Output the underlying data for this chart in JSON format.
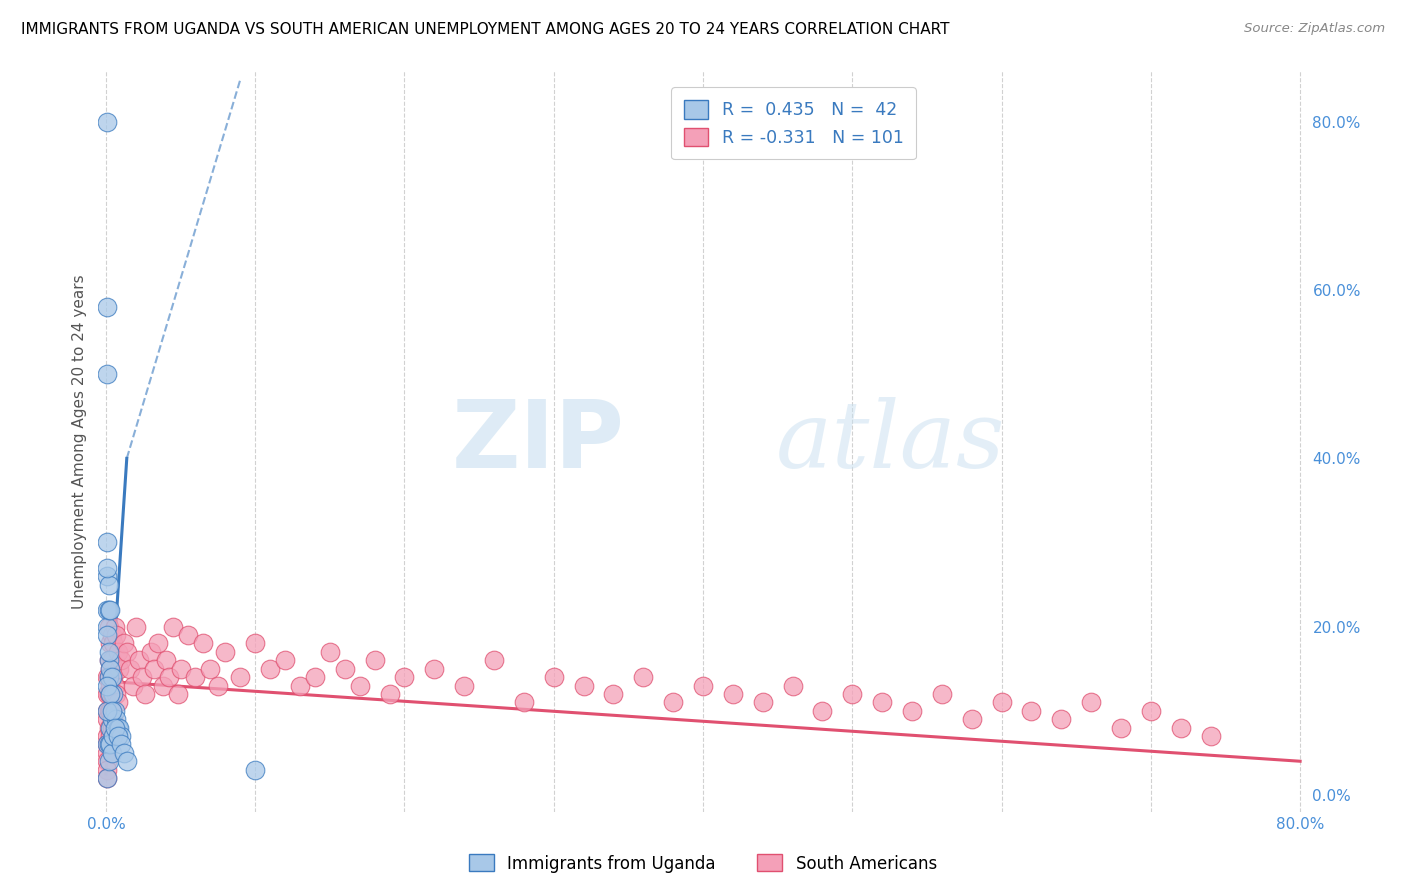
{
  "title": "IMMIGRANTS FROM UGANDA VS SOUTH AMERICAN UNEMPLOYMENT AMONG AGES 20 TO 24 YEARS CORRELATION CHART",
  "source": "Source: ZipAtlas.com",
  "ylabel": "Unemployment Among Ages 20 to 24 years",
  "xlim": [
    -0.005,
    0.805
  ],
  "ylim": [
    -0.02,
    0.86
  ],
  "x_ticks": [
    0.0,
    0.1,
    0.2,
    0.3,
    0.4,
    0.5,
    0.6,
    0.7,
    0.8
  ],
  "x_tick_labels": [
    "0.0%",
    "",
    "",
    "",
    "",
    "",
    "",
    "",
    "80.0%"
  ],
  "y_ticks_right": [
    0.0,
    0.2,
    0.4,
    0.6,
    0.8
  ],
  "y_tick_labels_right": [
    "0.0%",
    "20.0%",
    "40.0%",
    "60.0%",
    "80.0%"
  ],
  "uganda_color": "#a8c8e8",
  "south_color": "#f4a0b8",
  "uganda_line_color": "#3a7abf",
  "south_line_color": "#e05070",
  "watermark_zip": "ZIP",
  "watermark_atlas": "atlas",
  "background_color": "#ffffff",
  "grid_color": "#cccccc",
  "uganda_x": [
    0.001,
    0.001,
    0.001,
    0.001,
    0.001,
    0.001,
    0.001,
    0.001,
    0.002,
    0.002,
    0.002,
    0.002,
    0.002,
    0.002,
    0.003,
    0.003,
    0.003,
    0.003,
    0.004,
    0.004,
    0.004,
    0.005,
    0.005,
    0.006,
    0.007,
    0.008,
    0.009,
    0.01,
    0.001,
    0.001,
    0.001,
    0.001,
    0.001,
    0.002,
    0.003,
    0.004,
    0.006,
    0.008,
    0.01,
    0.012,
    0.014,
    0.1
  ],
  "uganda_y": [
    0.8,
    0.58,
    0.5,
    0.26,
    0.22,
    0.2,
    0.06,
    0.02,
    0.25,
    0.22,
    0.16,
    0.14,
    0.06,
    0.04,
    0.22,
    0.15,
    0.08,
    0.06,
    0.14,
    0.09,
    0.05,
    0.12,
    0.07,
    0.1,
    0.09,
    0.08,
    0.08,
    0.07,
    0.3,
    0.27,
    0.19,
    0.13,
    0.1,
    0.17,
    0.12,
    0.1,
    0.08,
    0.07,
    0.06,
    0.05,
    0.04,
    0.03
  ],
  "south_x": [
    0.001,
    0.001,
    0.001,
    0.001,
    0.001,
    0.001,
    0.001,
    0.001,
    0.001,
    0.001,
    0.002,
    0.002,
    0.002,
    0.002,
    0.002,
    0.002,
    0.002,
    0.003,
    0.003,
    0.003,
    0.003,
    0.003,
    0.004,
    0.004,
    0.004,
    0.004,
    0.005,
    0.005,
    0.005,
    0.006,
    0.006,
    0.007,
    0.007,
    0.008,
    0.008,
    0.009,
    0.01,
    0.012,
    0.014,
    0.016,
    0.018,
    0.02,
    0.022,
    0.024,
    0.026,
    0.03,
    0.032,
    0.035,
    0.038,
    0.04,
    0.042,
    0.045,
    0.048,
    0.05,
    0.055,
    0.06,
    0.065,
    0.07,
    0.075,
    0.08,
    0.09,
    0.1,
    0.11,
    0.12,
    0.13,
    0.14,
    0.15,
    0.16,
    0.17,
    0.18,
    0.19,
    0.2,
    0.22,
    0.24,
    0.26,
    0.28,
    0.3,
    0.32,
    0.34,
    0.36,
    0.38,
    0.4,
    0.42,
    0.44,
    0.46,
    0.48,
    0.5,
    0.52,
    0.54,
    0.56,
    0.58,
    0.6,
    0.62,
    0.64,
    0.66,
    0.68,
    0.7,
    0.72,
    0.74
  ],
  "south_y": [
    0.14,
    0.12,
    0.1,
    0.09,
    0.07,
    0.06,
    0.05,
    0.04,
    0.03,
    0.02,
    0.2,
    0.16,
    0.14,
    0.12,
    0.1,
    0.08,
    0.06,
    0.18,
    0.15,
    0.13,
    0.1,
    0.07,
    0.19,
    0.16,
    0.12,
    0.08,
    0.18,
    0.14,
    0.09,
    0.2,
    0.13,
    0.19,
    0.12,
    0.17,
    0.11,
    0.15,
    0.16,
    0.18,
    0.17,
    0.15,
    0.13,
    0.2,
    0.16,
    0.14,
    0.12,
    0.17,
    0.15,
    0.18,
    0.13,
    0.16,
    0.14,
    0.2,
    0.12,
    0.15,
    0.19,
    0.14,
    0.18,
    0.15,
    0.13,
    0.17,
    0.14,
    0.18,
    0.15,
    0.16,
    0.13,
    0.14,
    0.17,
    0.15,
    0.13,
    0.16,
    0.12,
    0.14,
    0.15,
    0.13,
    0.16,
    0.11,
    0.14,
    0.13,
    0.12,
    0.14,
    0.11,
    0.13,
    0.12,
    0.11,
    0.13,
    0.1,
    0.12,
    0.11,
    0.1,
    0.12,
    0.09,
    0.11,
    0.1,
    0.09,
    0.11,
    0.08,
    0.1,
    0.08,
    0.07
  ],
  "ug_line_x0": 0.0,
  "ug_line_y0": 0.025,
  "ug_line_x1": 0.014,
  "ug_line_y1": 0.4,
  "ug_line_dash_x0": 0.014,
  "ug_line_dash_y0": 0.4,
  "ug_line_dash_x1": 0.09,
  "ug_line_dash_y1": 0.85,
  "sa_line_x0": 0.0,
  "sa_line_y0": 0.135,
  "sa_line_x1": 0.8,
  "sa_line_y1": 0.04
}
